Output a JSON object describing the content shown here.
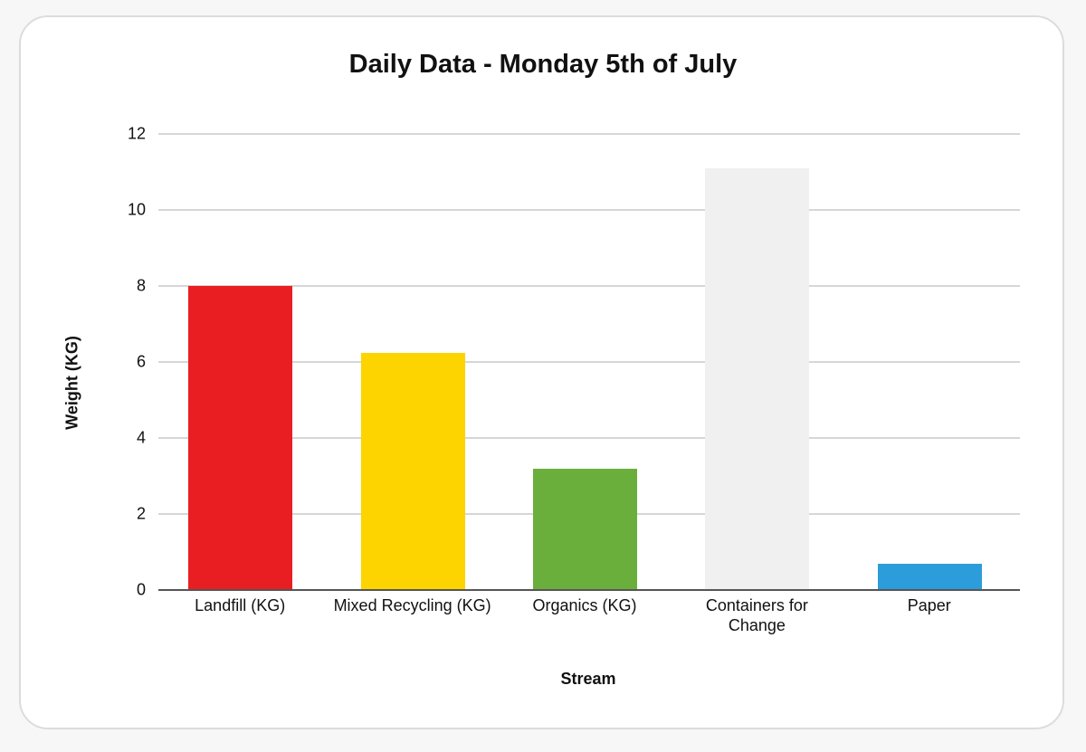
{
  "chart_data": {
    "type": "bar",
    "title": "Daily Data - Monday 5th of July",
    "xlabel": "Stream",
    "ylabel": "Weight (KG)",
    "categories": [
      "Landfill (KG)",
      "Mixed Recycling (KG)",
      "Organics (KG)",
      "Containers for Change",
      "Paper"
    ],
    "values": [
      8.0,
      6.25,
      3.2,
      11.1,
      0.7
    ],
    "colors": [
      "#e91e23",
      "#fdd300",
      "#6aaf3c",
      "#f0f0f0",
      "#2d9cdb"
    ],
    "ylim": [
      0,
      12
    ],
    "yticks": [
      0,
      2,
      4,
      6,
      8,
      10,
      12
    ],
    "grid": true,
    "legend": "none"
  }
}
